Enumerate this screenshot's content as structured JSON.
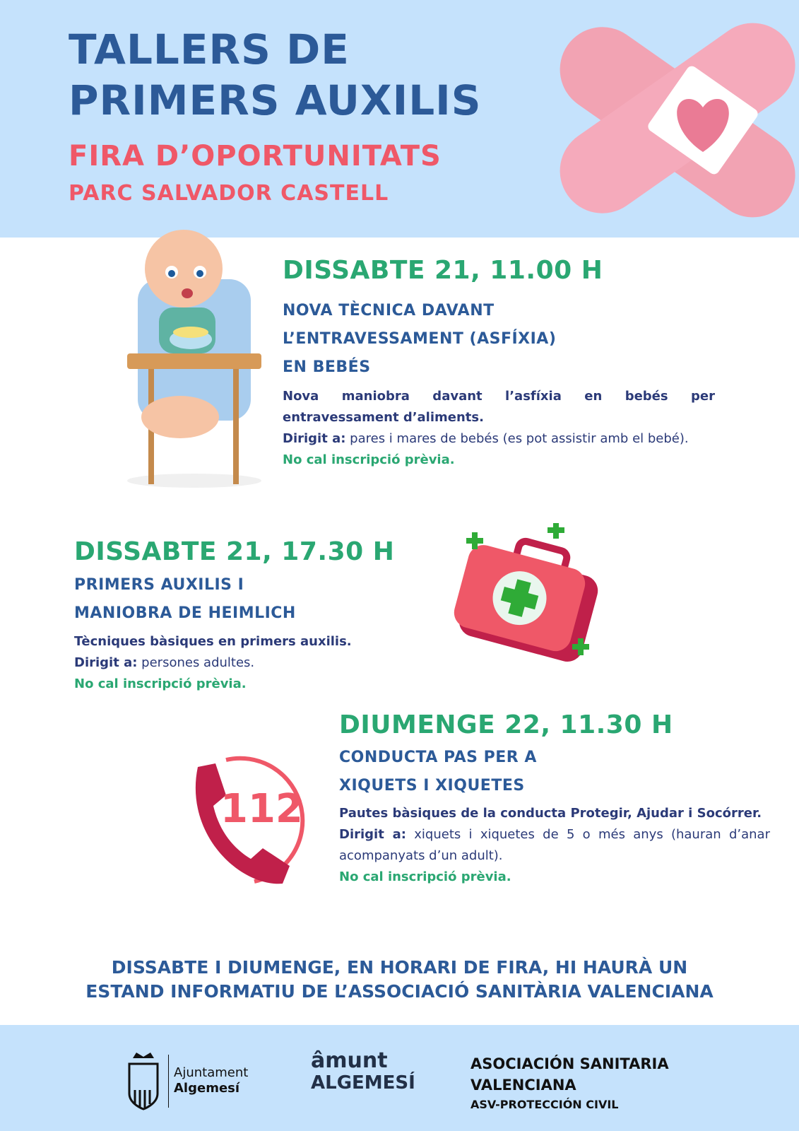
{
  "header": {
    "title_line1": "TALLERS DE",
    "title_line2": "PRIMERS AUXILIS",
    "subtitle": "FIRA D’OPORTUNITATS",
    "location": "PARC SALVADOR CASTELL"
  },
  "workshops": [
    {
      "date": "DISSABTE 21, 11.00 H",
      "title": [
        "NOVA TÈCNICA DAVANT",
        "L’ENTRAVESSAMENT (ASFÍXIA)",
        "EN BEBÉS"
      ],
      "description": "Nova maniobra davant l’asfíxia en bebés per entravessament d’aliments.",
      "audience_label": "Dirigit a:",
      "audience": "pares i mares de bebés (es pot assistir amb el bebé).",
      "note": "No cal inscripció prèvia.",
      "icon": "baby-highchair-icon"
    },
    {
      "date": "DISSABTE 21, 17.30 H",
      "title": [
        "PRIMERS AUXILIS I",
        "MANIOBRA DE HEIMLICH"
      ],
      "description": "Tècniques bàsiques en primers auxilis.",
      "audience_label": "Dirigit a:",
      "audience": "persones adultes.",
      "note": "No cal inscripció prèvia.",
      "icon": "first-aid-kit-icon"
    },
    {
      "date": "DIUMENGE 22, 11.30 H",
      "title": [
        "CONDUCTA PAS PER A",
        "XIQUETS I XIQUETES"
      ],
      "description": "Pautes bàsiques de la conducta Protegir, Ajudar i Socórrer.",
      "audience_label": "Dirigit a:",
      "audience": "xiquets i xiquetes de 5 o més anys (hauran d’anar acompanyats d’un adult).",
      "note": "No cal inscripció prèvia.",
      "icon": "phone-112-icon",
      "emergency_number": "112"
    }
  ],
  "bottom_notice": [
    "DISSABTE I DIUMENGE, EN HORARI DE FIRA, HI HAURÀ UN",
    "ESTAND INFORMATIU DE L’ASSOCIACIÓ SANITÀRIA VALENCIANA"
  ],
  "footer": {
    "logo1": {
      "line1": "Ajuntament",
      "line2": "Algemesí"
    },
    "logo2": {
      "line1": "âmunt",
      "line2": "ALGEMESÍ"
    },
    "logo3": {
      "line1": "ASOCIACIÓN SANITARIA",
      "line2": "VALENCIANA",
      "line3": "ASV-PROTECCIÓN CIVIL"
    }
  },
  "colors": {
    "header_bg": "#c5e2fc",
    "title_blue": "#2c5a98",
    "pink": "#ef5868",
    "green": "#2aa772",
    "navy": "#2b3a78"
  }
}
